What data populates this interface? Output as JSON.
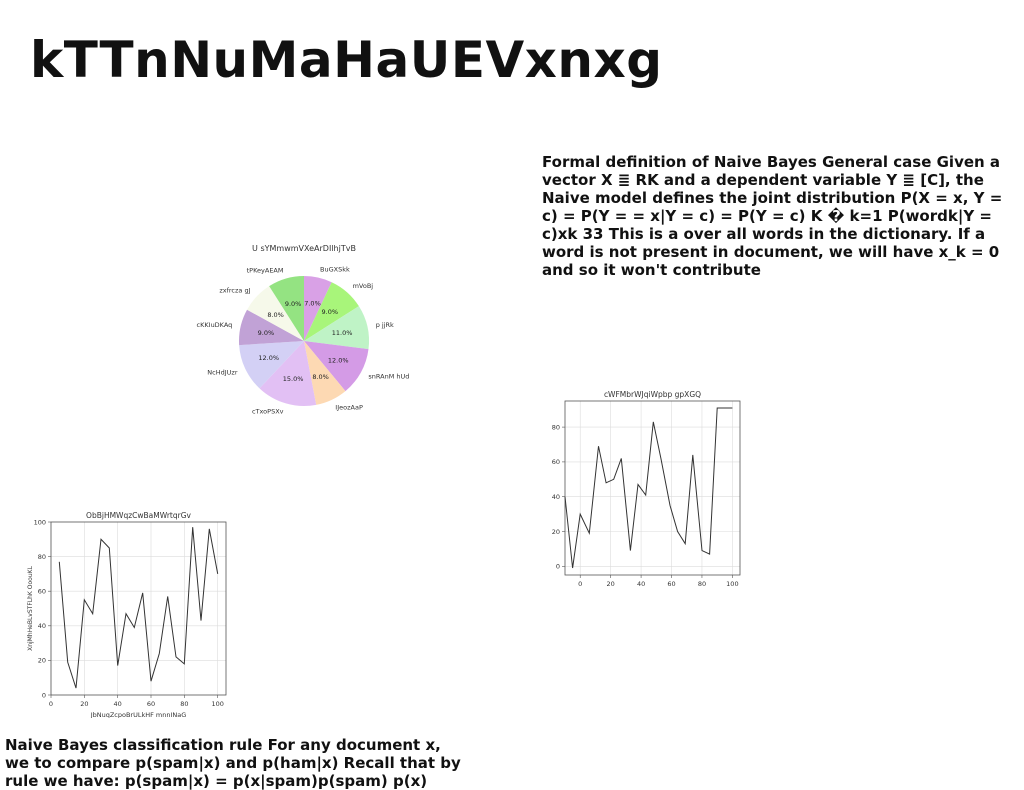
{
  "page": {
    "title": "kTTnNuMaHaUEVxnxg",
    "paragraph_right": "Formal definition of Naive Bayes General case Given a vector X ≣ RK and a dependent variable Y ≣ [C], the Naive model defines the joint distribution P(X = x, Y = c) = P(Y = = x|Y = c) = P(Y = c) K � k=1 P(wordk|Y = c)xk 33 This is a over all words in the dictionary. If a word is not present in document, we will have x_k = 0 and so it won't contribute",
    "paragraph_bottom": "Naive Bayes classification rule For any document x, we to compare p(spam|x) and p(ham|x) Recall that by rule we have: p(spam|x) = p(x|spam)p(spam) p(x)"
  },
  "chart_data": [
    {
      "type": "pie",
      "title": "U sYMmwmVXeArDIlhjTvB",
      "start_angle_deg": 90,
      "direction": "clockwise",
      "slices": [
        {
          "label": "BuGXSkk",
          "value": 7.0,
          "color": "#d9a1e6"
        },
        {
          "label": "mVoBj",
          "value": 9.0,
          "color": "#a8f57a"
        },
        {
          "label": "p jjRk",
          "value": 11.0,
          "color": "#bff3c6"
        },
        {
          "label": "snRAnM hUd",
          "value": 12.0,
          "color": "#d49be6"
        },
        {
          "label": "IJeozAaP",
          "value": 8.0,
          "color": "#fdd9b3"
        },
        {
          "label": "cTxoPSXv",
          "value": 15.0,
          "color": "#e2c0f4"
        },
        {
          "label": "NcHdJUzr",
          "value": 12.0,
          "color": "#d3d0f5"
        },
        {
          "label": "cKKIuDKAq",
          "value": 9.0,
          "color": "#c1a2d6"
        },
        {
          "label": "zxfrcza gJ",
          "value": 8.0,
          "color": "#f6f9ea"
        },
        {
          "label": "tPKeyAEAM",
          "value": 9.0,
          "color": "#94e382"
        }
      ]
    },
    {
      "type": "line",
      "title": "cWFMbrWJqiWpbp gpXGQ",
      "xlabel": "",
      "ylabel": "",
      "xlim": [
        -10,
        105
      ],
      "ylim": [
        -5,
        95
      ],
      "xticks": [
        0,
        20,
        40,
        60,
        80,
        100
      ],
      "yticks": [
        0,
        20,
        40,
        60,
        80
      ],
      "grid": true,
      "x": [
        -10,
        -5,
        0,
        6,
        12,
        17,
        22,
        27,
        33,
        38,
        43,
        48,
        53,
        59,
        64,
        69,
        74,
        80,
        85,
        90,
        100
      ],
      "y": [
        40,
        -1,
        30,
        19,
        69,
        48,
        50,
        62,
        9,
        47,
        41,
        83,
        62,
        35,
        20,
        13,
        64,
        9,
        7,
        91,
        91
      ],
      "color": "#333333"
    },
    {
      "type": "line",
      "title": "ObBjHMWqzCwBaMWrtqrGv",
      "xlabel": "JbNuqZcpoBrULkHF mnnINaG",
      "ylabel": "XnjMhHeBLvSTFLhK OoouKL",
      "xlim": [
        0,
        105
      ],
      "ylim": [
        0,
        100
      ],
      "xticks": [
        0,
        20,
        40,
        60,
        80,
        100
      ],
      "yticks": [
        0,
        20,
        40,
        60,
        80,
        100
      ],
      "grid": true,
      "x": [
        5,
        10,
        15,
        20,
        25,
        30,
        35,
        40,
        45,
        50,
        55,
        60,
        65,
        70,
        75,
        80,
        85,
        90,
        95,
        100
      ],
      "y": [
        77,
        19,
        4,
        55,
        47,
        90,
        85,
        17,
        47,
        39,
        59,
        8,
        24,
        57,
        22,
        18,
        97,
        43,
        96,
        70
      ],
      "color": "#333333"
    }
  ]
}
